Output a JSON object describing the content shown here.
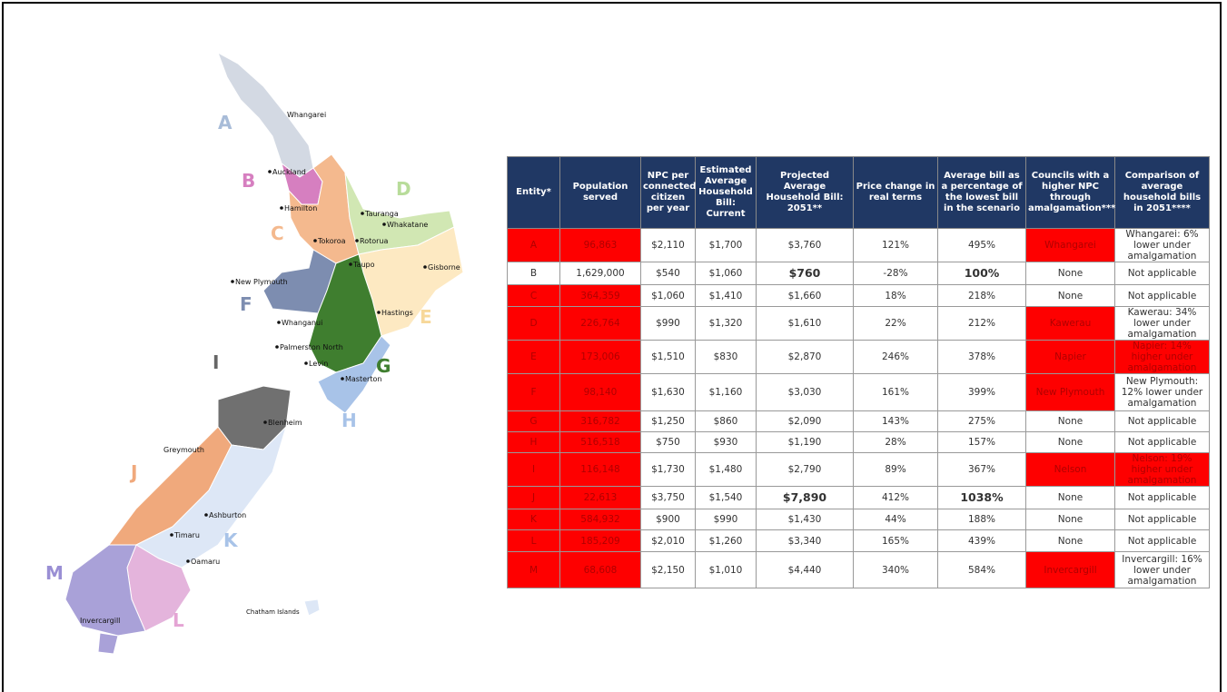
{
  "map": {
    "regions": [
      "A",
      "B",
      "C",
      "D",
      "E",
      "F",
      "G",
      "H",
      "I",
      "J",
      "K",
      "L",
      "M"
    ],
    "places": [
      "Whangarei",
      "Auckland",
      "Hamilton",
      "Tauranga",
      "Whakatane",
      "Rotorua",
      "Tokoroa",
      "Taupo",
      "Gisborne",
      "New Plymouth",
      "Hastings",
      "Whanganui",
      "Palmerston North",
      "Levin",
      "Masterton",
      "Blenheim",
      "Greymouth",
      "Ashburton",
      "Timaru",
      "Oamaru",
      "Invercargill",
      "Chatham Islands"
    ]
  },
  "table": {
    "header": [
      "Entity*",
      "Population served",
      "NPC per connected citizen per year",
      "Estimated Average Household Bill: Current",
      "Projected Average Household Bill: 2051**",
      "Price change in real terms",
      "Average bill as a percentage of the lowest bill in the scenario",
      "Councils with a higher NPC through amalgamation***",
      "Comparison of average household bills in 2051****"
    ],
    "rows": [
      [
        "A",
        "96,863",
        "$2,110",
        "$1,700",
        "$3,760",
        "121%",
        "495%",
        "Whangarei",
        "Whangarei: 6% lower under amalgamation"
      ],
      [
        "B",
        "1,629,000",
        "$540",
        "$1,060",
        "$760",
        "-28%",
        "100%",
        "None",
        "Not applicable"
      ],
      [
        "C",
        "364,359",
        "$1,060",
        "$1,410",
        "$1,660",
        "18%",
        "218%",
        "None",
        "Not applicable"
      ],
      [
        "D",
        "226,764",
        "$990",
        "$1,320",
        "$1,610",
        "22%",
        "212%",
        "Kawerau",
        "Kawerau: 34% lower under amalgamation"
      ],
      [
        "E",
        "173,006",
        "$1,510",
        "$830",
        "$2,870",
        "246%",
        "378%",
        "Napier",
        "Napier: 14% higher under amalgamation"
      ],
      [
        "F",
        "98,140",
        "$1,630",
        "$1,160",
        "$3,030",
        "161%",
        "399%",
        "New Plymouth",
        "New Plymouth: 12% lower under amalgamation"
      ],
      [
        "G",
        "316,782",
        "$1,250",
        "$860",
        "$2,090",
        "143%",
        "275%",
        "None",
        "Not applicable"
      ],
      [
        "H",
        "516,518",
        "$750",
        "$930",
        "$1,190",
        "28%",
        "157%",
        "None",
        "Not applicable"
      ],
      [
        "I",
        "116,148",
        "$1,730",
        "$1,480",
        "$2,790",
        "89%",
        "367%",
        "Nelson",
        "Nelson: 19% higher under amalgamation"
      ],
      [
        "J",
        "22,613",
        "$3,750",
        "$1,540",
        "$7,890",
        "412%",
        "1038%",
        "None",
        "Not applicable"
      ],
      [
        "K",
        "584,932",
        "$900",
        "$990",
        "$1,430",
        "44%",
        "188%",
        "None",
        "Not applicable"
      ],
      [
        "L",
        "185,209",
        "$2,010",
        "$1,260",
        "$3,340",
        "165%",
        "439%",
        "None",
        "Not applicable"
      ],
      [
        "M",
        "68,608",
        "$2,150",
        "$1,010",
        "$4,440",
        "340%",
        "584%",
        "Invercargill",
        "Invercargill: 16% lower under amalgamation"
      ]
    ]
  }
}
